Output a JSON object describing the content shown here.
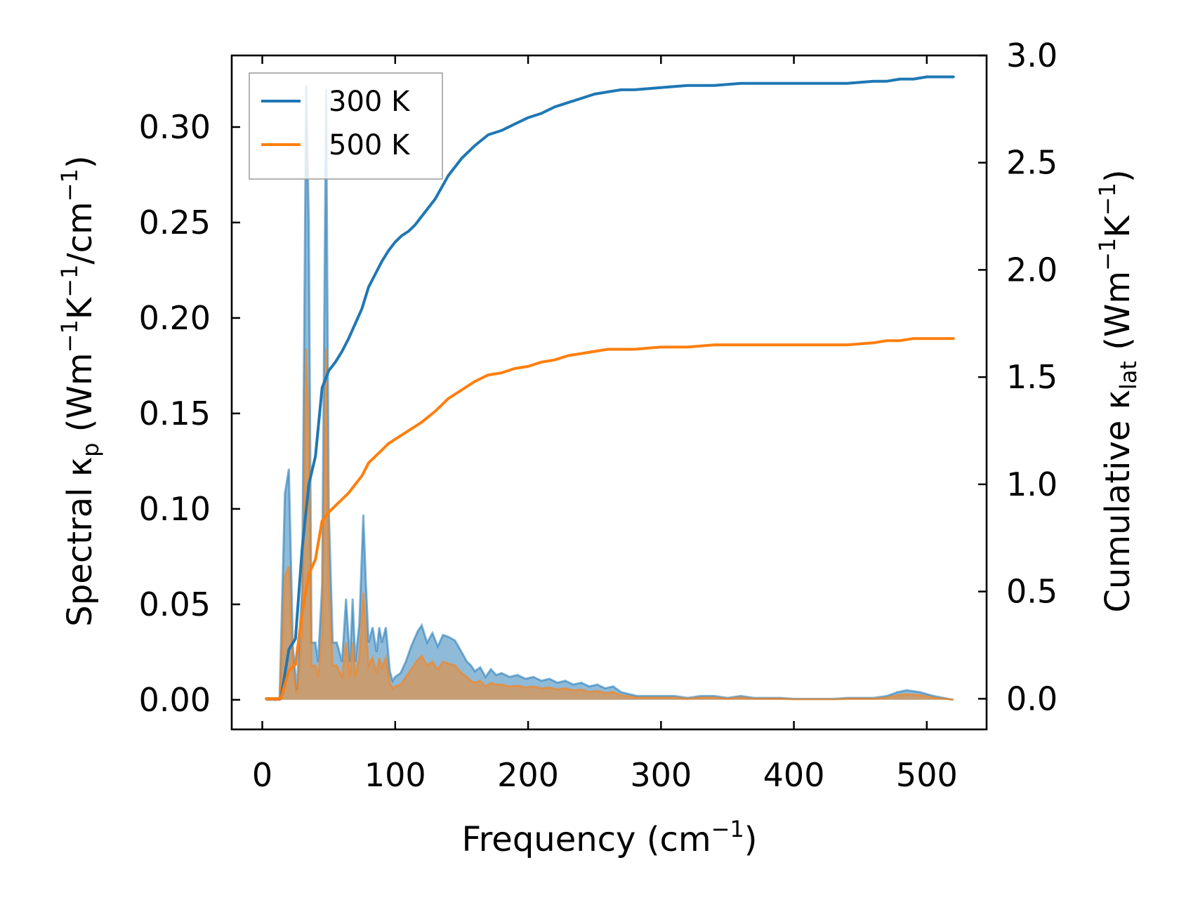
{
  "chart_data": {
    "type": "line",
    "title": "",
    "xlabel": "Frequency (cm⁻¹)",
    "ylabel_left": "Spectral κₚ (Wm⁻¹K⁻¹/cm⁻¹)",
    "ylabel_right": "Cumulative κₗₐₜ (Wm⁻¹K⁻¹)",
    "xlim": [
      -23,
      545
    ],
    "ylim_left": [
      -0.0155,
      0.3375
    ],
    "ylim_right": [
      -0.143,
      3.0
    ],
    "x_ticks": [
      0,
      100,
      200,
      300,
      400,
      500
    ],
    "x_tick_labels": [
      "0",
      "100",
      "200",
      "300",
      "400",
      "500"
    ],
    "y_left_ticks": [
      0.0,
      0.05,
      0.1,
      0.15,
      0.2,
      0.25,
      0.3
    ],
    "y_left_tick_labels": [
      "0.00",
      "0.05",
      "0.10",
      "0.15",
      "0.20",
      "0.25",
      "0.30"
    ],
    "y_right_ticks": [
      0.0,
      0.5,
      1.0,
      1.5,
      2.0,
      2.5,
      3.0
    ],
    "y_right_tick_labels": [
      "0.0",
      "0.5",
      "1.0",
      "1.5",
      "2.0",
      "2.5",
      "3.0"
    ],
    "legend": {
      "location": "upper-left",
      "entries": [
        "300 K",
        "500 K"
      ]
    },
    "colors": {
      "300 K": "#1f77b4",
      "500 K": "#ff7f0e"
    },
    "series": [
      {
        "name": "300 K",
        "kind": "spectral",
        "axis": "left",
        "x": [
          3,
          13,
          17,
          20,
          23,
          26,
          30,
          33,
          35,
          37,
          40,
          42,
          45,
          48,
          50,
          53,
          56,
          60,
          63,
          66,
          68,
          70,
          73,
          76,
          78,
          80,
          83,
          86,
          88,
          90,
          93,
          96,
          98,
          100,
          104,
          108,
          112,
          117,
          120,
          124,
          128,
          132,
          136,
          140,
          145,
          150,
          154,
          157,
          160,
          164,
          168,
          172,
          176,
          180,
          186,
          192,
          198,
          204,
          210,
          216,
          222,
          228,
          234,
          240,
          246,
          252,
          258,
          264,
          270,
          276,
          282,
          290,
          300,
          310,
          320,
          330,
          340,
          350,
          360,
          370,
          380,
          390,
          400,
          410,
          420,
          430,
          440,
          450,
          460,
          470,
          478,
          485,
          495,
          505,
          520
        ],
        "y": [
          0.0,
          0.0,
          0.108,
          0.121,
          0.028,
          0.005,
          0.06,
          0.322,
          0.25,
          0.03,
          0.03,
          0.02,
          0.06,
          0.32,
          0.1,
          0.03,
          0.03,
          0.02,
          0.053,
          0.02,
          0.053,
          0.02,
          0.04,
          0.097,
          0.06,
          0.03,
          0.038,
          0.025,
          0.038,
          0.03,
          0.038,
          0.015,
          0.01,
          0.012,
          0.014,
          0.02,
          0.028,
          0.036,
          0.039,
          0.03,
          0.035,
          0.028,
          0.034,
          0.033,
          0.031,
          0.025,
          0.02,
          0.018,
          0.015,
          0.017,
          0.012,
          0.016,
          0.013,
          0.014,
          0.012,
          0.013,
          0.011,
          0.012,
          0.01,
          0.011,
          0.009,
          0.01,
          0.008,
          0.009,
          0.007,
          0.008,
          0.006,
          0.007,
          0.004,
          0.003,
          0.002,
          0.002,
          0.002,
          0.002,
          0.001,
          0.002,
          0.002,
          0.001,
          0.002,
          0.001,
          0.001,
          0.001,
          0.0005,
          0.0005,
          0.0005,
          0.0005,
          0.001,
          0.001,
          0.001,
          0.002,
          0.004,
          0.005,
          0.004,
          0.002,
          0.0
        ]
      },
      {
        "name": "500 K",
        "kind": "spectral",
        "axis": "left",
        "x": [
          3,
          13,
          17,
          20,
          23,
          26,
          30,
          33,
          35,
          37,
          40,
          42,
          45,
          48,
          50,
          53,
          56,
          60,
          63,
          66,
          68,
          70,
          73,
          76,
          78,
          80,
          83,
          86,
          88,
          90,
          93,
          96,
          98,
          100,
          104,
          108,
          112,
          117,
          120,
          124,
          128,
          132,
          136,
          140,
          145,
          150,
          154,
          157,
          160,
          164,
          168,
          172,
          176,
          180,
          186,
          192,
          198,
          204,
          210,
          216,
          222,
          228,
          234,
          240,
          246,
          252,
          258,
          264,
          270,
          276,
          282,
          290,
          300,
          310,
          320,
          330,
          340,
          350,
          360,
          370,
          380,
          390,
          400,
          410,
          420,
          430,
          440,
          450,
          460,
          470,
          478,
          485,
          495,
          505,
          520
        ],
        "y": [
          0.0,
          0.0,
          0.065,
          0.07,
          0.016,
          0.003,
          0.035,
          0.184,
          0.14,
          0.018,
          0.018,
          0.012,
          0.035,
          0.184,
          0.06,
          0.018,
          0.018,
          0.012,
          0.03,
          0.012,
          0.03,
          0.012,
          0.023,
          0.056,
          0.035,
          0.018,
          0.022,
          0.014,
          0.022,
          0.017,
          0.022,
          0.009,
          0.006,
          0.007,
          0.008,
          0.012,
          0.016,
          0.021,
          0.023,
          0.018,
          0.02,
          0.016,
          0.02,
          0.019,
          0.018,
          0.014,
          0.012,
          0.01,
          0.009,
          0.01,
          0.007,
          0.009,
          0.008,
          0.008,
          0.007,
          0.0075,
          0.0065,
          0.007,
          0.006,
          0.0065,
          0.0055,
          0.006,
          0.005,
          0.0053,
          0.0042,
          0.0047,
          0.0036,
          0.0041,
          0.0024,
          0.0018,
          0.0012,
          0.0012,
          0.0012,
          0.0012,
          0.0006,
          0.0012,
          0.0012,
          0.0006,
          0.0012,
          0.0006,
          0.0006,
          0.0006,
          0.0003,
          0.0003,
          0.0003,
          0.0003,
          0.0006,
          0.0006,
          0.0006,
          0.0012,
          0.0024,
          0.003,
          0.0024,
          0.0012,
          0.0
        ]
      },
      {
        "name": "300 K",
        "kind": "cumulative",
        "axis": "right",
        "x": [
          3,
          14,
          20,
          25,
          30,
          35,
          40,
          45,
          50,
          55,
          60,
          65,
          70,
          75,
          80,
          85,
          90,
          95,
          100,
          105,
          110,
          115,
          120,
          130,
          140,
          150,
          160,
          170,
          180,
          190,
          200,
          210,
          220,
          230,
          240,
          250,
          260,
          270,
          280,
          300,
          320,
          340,
          360,
          380,
          400,
          420,
          440,
          460,
          470,
          480,
          490,
          500,
          520
        ],
        "y": [
          0.0,
          0.0,
          0.23,
          0.28,
          0.7,
          1.0,
          1.13,
          1.45,
          1.53,
          1.57,
          1.62,
          1.68,
          1.75,
          1.82,
          1.92,
          1.98,
          2.04,
          2.09,
          2.13,
          2.16,
          2.18,
          2.21,
          2.25,
          2.33,
          2.44,
          2.52,
          2.58,
          2.63,
          2.65,
          2.68,
          2.71,
          2.73,
          2.76,
          2.78,
          2.8,
          2.82,
          2.83,
          2.84,
          2.84,
          2.85,
          2.86,
          2.86,
          2.87,
          2.87,
          2.87,
          2.87,
          2.87,
          2.88,
          2.88,
          2.89,
          2.89,
          2.9,
          2.9
        ]
      },
      {
        "name": "500 K",
        "kind": "cumulative",
        "axis": "right",
        "x": [
          3,
          14,
          20,
          25,
          30,
          35,
          40,
          45,
          50,
          55,
          60,
          65,
          70,
          75,
          80,
          85,
          90,
          95,
          100,
          105,
          110,
          115,
          120,
          130,
          140,
          150,
          160,
          170,
          180,
          190,
          200,
          210,
          220,
          230,
          240,
          250,
          260,
          270,
          280,
          300,
          320,
          340,
          360,
          380,
          400,
          420,
          440,
          460,
          470,
          480,
          490,
          500,
          520
        ],
        "y": [
          0.0,
          0.0,
          0.13,
          0.16,
          0.4,
          0.58,
          0.65,
          0.83,
          0.87,
          0.9,
          0.93,
          0.96,
          1.0,
          1.04,
          1.1,
          1.13,
          1.16,
          1.19,
          1.21,
          1.23,
          1.25,
          1.27,
          1.29,
          1.34,
          1.4,
          1.44,
          1.48,
          1.51,
          1.52,
          1.54,
          1.55,
          1.57,
          1.58,
          1.6,
          1.61,
          1.62,
          1.63,
          1.63,
          1.63,
          1.64,
          1.64,
          1.65,
          1.65,
          1.65,
          1.65,
          1.65,
          1.65,
          1.66,
          1.67,
          1.67,
          1.68,
          1.68,
          1.68
        ]
      }
    ]
  }
}
